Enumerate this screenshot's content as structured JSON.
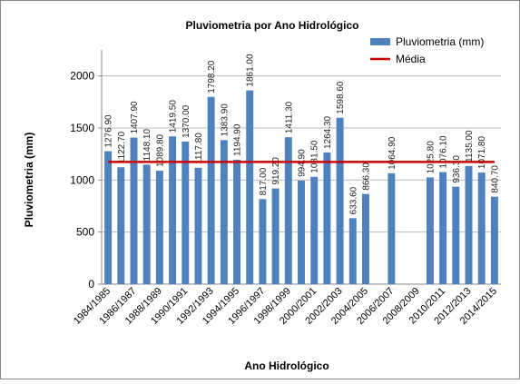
{
  "chart_data": {
    "type": "bar",
    "title": "Pluviometria por Ano Hidrológico",
    "x_label": "Ano Hidrológico",
    "y_label": "Pluviometria (mm)",
    "categories": [
      "1984/1985",
      null,
      "1986/1987",
      null,
      "1988/1989",
      null,
      "1990/1991",
      null,
      "1992/1993",
      null,
      "1994/1995",
      null,
      "1996/1997",
      null,
      "1998/1999",
      null,
      "2000/2001",
      null,
      "2002/2003",
      null,
      "2004/2005",
      null,
      "2006/2007",
      null,
      "2008/2009",
      null,
      "2010/2011",
      null,
      "2012/2013",
      null,
      "2014/2015"
    ],
    "series": [
      {
        "name": "Pluviometria (mm)",
        "color": "#4f81bd",
        "values": [
          1276.9,
          1122.7,
          1407.9,
          1148.1,
          1089.8,
          1419.5,
          1370,
          1117.8,
          1798.2,
          1383.9,
          1194.9,
          1861,
          817,
          919.2,
          1411.3,
          994.9,
          1031.5,
          1264.3,
          1598.6,
          633.6,
          866.3,
          null,
          1064.9,
          null,
          null,
          1025.8,
          1076.1,
          936.3,
          1135,
          1071.8,
          840.7
        ],
        "value_labels": [
          "1276.90",
          "1122.70",
          "1407.90",
          "1148.10",
          "1089.80",
          "1419.50",
          "1370.00",
          "1117.80",
          "1798.20",
          "1383.90",
          "1194.90",
          "1861.00",
          "817.00",
          "919.20",
          "1411.30",
          "994.90",
          "1031.50",
          "1264.30",
          "1598.60",
          "633.60",
          "866.30",
          null,
          "1064.90",
          null,
          null,
          "1025.80",
          "1076.10",
          "936.30",
          "1135.00",
          "1071.80",
          "840.70"
        ]
      },
      {
        "name": "Média",
        "color": "#cc0000",
        "type": "line",
        "values": [
          1174.2,
          1174.2,
          1174.2,
          1174.2,
          1174.2,
          1174.2,
          1174.2,
          1174.2,
          1174.2,
          1174.2,
          1174.2,
          1174.2,
          1174.2,
          1174.2,
          1174.2,
          1174.2,
          1174.2,
          1174.2,
          1174.2,
          1174.2,
          1174.2,
          1174.2,
          1174.2,
          1174.2,
          1174.2,
          1174.2,
          1174.2,
          1174.2,
          1174.2,
          1174.2,
          1174.2
        ]
      }
    ],
    "ylim": [
      0,
      2250
    ],
    "yticks": [
      0,
      500,
      1000,
      1500,
      2000
    ],
    "grid": true,
    "legend": "upper right"
  }
}
